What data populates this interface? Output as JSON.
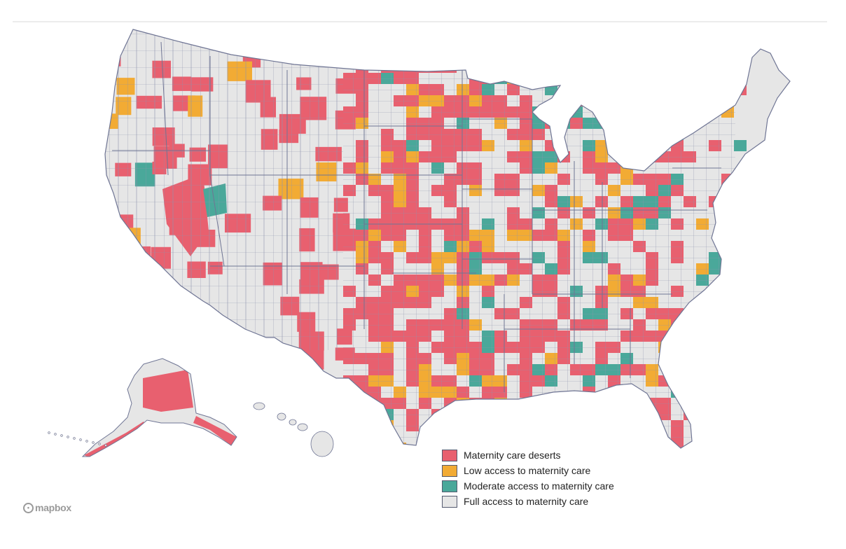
{
  "colors": {
    "desert": "#e8606f",
    "low": "#f2ab34",
    "moderate": "#4aa89a",
    "full": "#e6e6e6",
    "border": "#6f7594",
    "background": "#ffffff"
  },
  "legend": {
    "items": [
      {
        "key": "desert",
        "label": "Maternity care deserts",
        "icon": "red-swatch"
      },
      {
        "key": "low",
        "label": "Low access to maternity care",
        "icon": "orange-swatch"
      },
      {
        "key": "moderate",
        "label": "Moderate access to maternity care",
        "icon": "teal-swatch"
      },
      {
        "key": "full",
        "label": "Full access to maternity care",
        "icon": "gray-swatch"
      }
    ]
  },
  "attribution": {
    "logo_text": "mapbox",
    "icon": "mapbox-logo-icon"
  }
}
